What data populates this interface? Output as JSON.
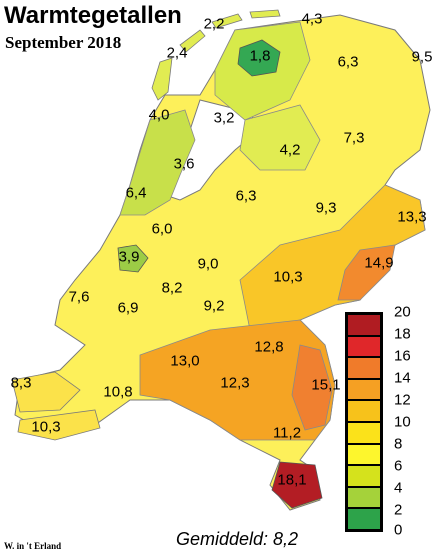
{
  "title": "Warmtegetallen",
  "subtitle": "September 2018",
  "author": "W. in 't Erland",
  "average": "Gemiddeld: 8,2",
  "legend": {
    "ticks": [
      "20",
      "18",
      "16",
      "14",
      "12",
      "10",
      "8",
      "6",
      "4",
      "2",
      "0"
    ],
    "colors": [
      "#b01c22",
      "#e0272a",
      "#f07b2a",
      "#f5a023",
      "#f7c21b",
      "#fbe21a",
      "#fdf62d",
      "#d5e21c",
      "#a5d23a",
      "#2da34a"
    ]
  },
  "values": {
    "v1": "2,2",
    "v2": "4,3",
    "v3": "1,8",
    "v4": "2,4",
    "v5": "6,3",
    "v6": "9,5",
    "v7": "4,0",
    "v8": "3,2",
    "v9": "3,6",
    "v10": "7,3",
    "v11": "4,2",
    "v12": "6,4",
    "v13": "6,3",
    "v14": "9,3",
    "v15": "13,3",
    "v16": "6,0",
    "v17": "3,9",
    "v18": "9,0",
    "v19": "10,3",
    "v20": "14,9",
    "v21": "8,2",
    "v22": "7,6",
    "v23": "6,9",
    "v24": "9,2",
    "v25": "13,0",
    "v26": "12,8",
    "v27": "8,3",
    "v28": "12,3",
    "v29": "15,1",
    "v30": "10,8",
    "v31": "10,3",
    "v32": "11,2",
    "v33": "18,1"
  }
}
